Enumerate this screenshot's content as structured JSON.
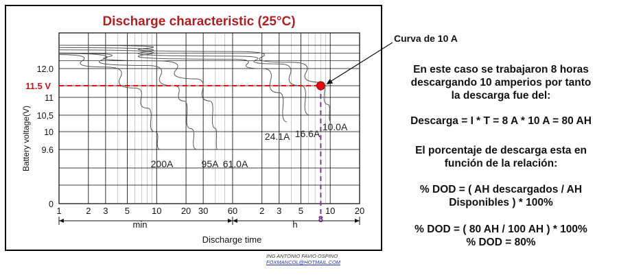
{
  "chart_data": {
    "type": "line",
    "title": "Discharge characteristic (25°C)",
    "xlabel": "Discharge time",
    "ylabel": "Battery voltage(V)",
    "x_scale": "log",
    "x_unit_labels": [
      "min",
      "h"
    ],
    "x_ticks_min": [
      "1",
      "2",
      "3",
      "5",
      "10",
      "20",
      "30",
      "60"
    ],
    "x_ticks_h": [
      "2",
      "3",
      "5",
      "10",
      "20"
    ],
    "y_ticks": [
      "0",
      "9.6",
      "10",
      "10,5",
      "11",
      "11.5 V",
      "12.0"
    ],
    "grid": true,
    "series": [
      {
        "name": "200A",
        "points": [
          [
            1,
            12.9
          ],
          [
            3,
            12.1
          ],
          [
            6,
            11.4
          ],
          [
            8,
            10.7
          ],
          [
            9.5,
            10.0
          ],
          [
            11,
            9.6
          ]
        ]
      },
      {
        "name": "95A",
        "points": [
          [
            1,
            12.97
          ],
          [
            8,
            12.2
          ],
          [
            15,
            11.5
          ],
          [
            19,
            10.9
          ],
          [
            22,
            10.1
          ],
          [
            26,
            9.6
          ]
        ]
      },
      {
        "name": "61.0A",
        "points": [
          [
            1,
            13.0
          ],
          [
            10,
            12.5
          ],
          [
            25,
            11.7
          ],
          [
            35,
            10.9
          ],
          [
            40,
            10.1
          ],
          [
            42,
            9.6
          ]
        ]
      },
      {
        "name": "24.1A",
        "points": [
          [
            1,
            13.2
          ],
          [
            60,
            12.6
          ],
          [
            120,
            12.0
          ],
          [
            180,
            11.2
          ],
          [
            215,
            10.3
          ]
        ]
      },
      {
        "name": "16.6A",
        "points": [
          [
            1,
            13.35
          ],
          [
            60,
            12.8
          ],
          [
            180,
            12.3
          ],
          [
            300,
            11.5
          ],
          [
            370,
            10.5
          ]
        ]
      },
      {
        "name": "10.0A",
        "points": [
          [
            1,
            13.5
          ],
          [
            60,
            13.1
          ],
          [
            240,
            12.4
          ],
          [
            480,
            11.6
          ],
          [
            570,
            10.8
          ],
          [
            610,
            10.3
          ]
        ]
      }
    ],
    "highlight_point": {
      "x_hours": 8,
      "y": 11.5,
      "label_y": "11.5 V",
      "label_x": "8",
      "color": "#e01010"
    }
  },
  "texts": {
    "callout": "Curva de 10 A",
    "paragraph1": [
      "En este caso se trabajaron 8 horas",
      "descargando 10 amperios por tanto",
      "la descarga fue del:"
    ],
    "formula1": "Descarga = I * T = 8 A * 10 A = 80 AH",
    "paragraph2": [
      "El porcentaje de descarga esta en",
      "función de la relación:"
    ],
    "formula2": [
      "% DOD = ( AH descargados / AH",
      "Disponibles ) * 100%"
    ],
    "formula3": [
      "% DOD = ( 80 AH / 100 AH ) * 100%",
      "% DOD = 80%"
    ],
    "credit_name": "ING ANTONIO FAVIO OSPINO",
    "credit_email": "FOXMANCOL@HOTMAIL.COM"
  }
}
